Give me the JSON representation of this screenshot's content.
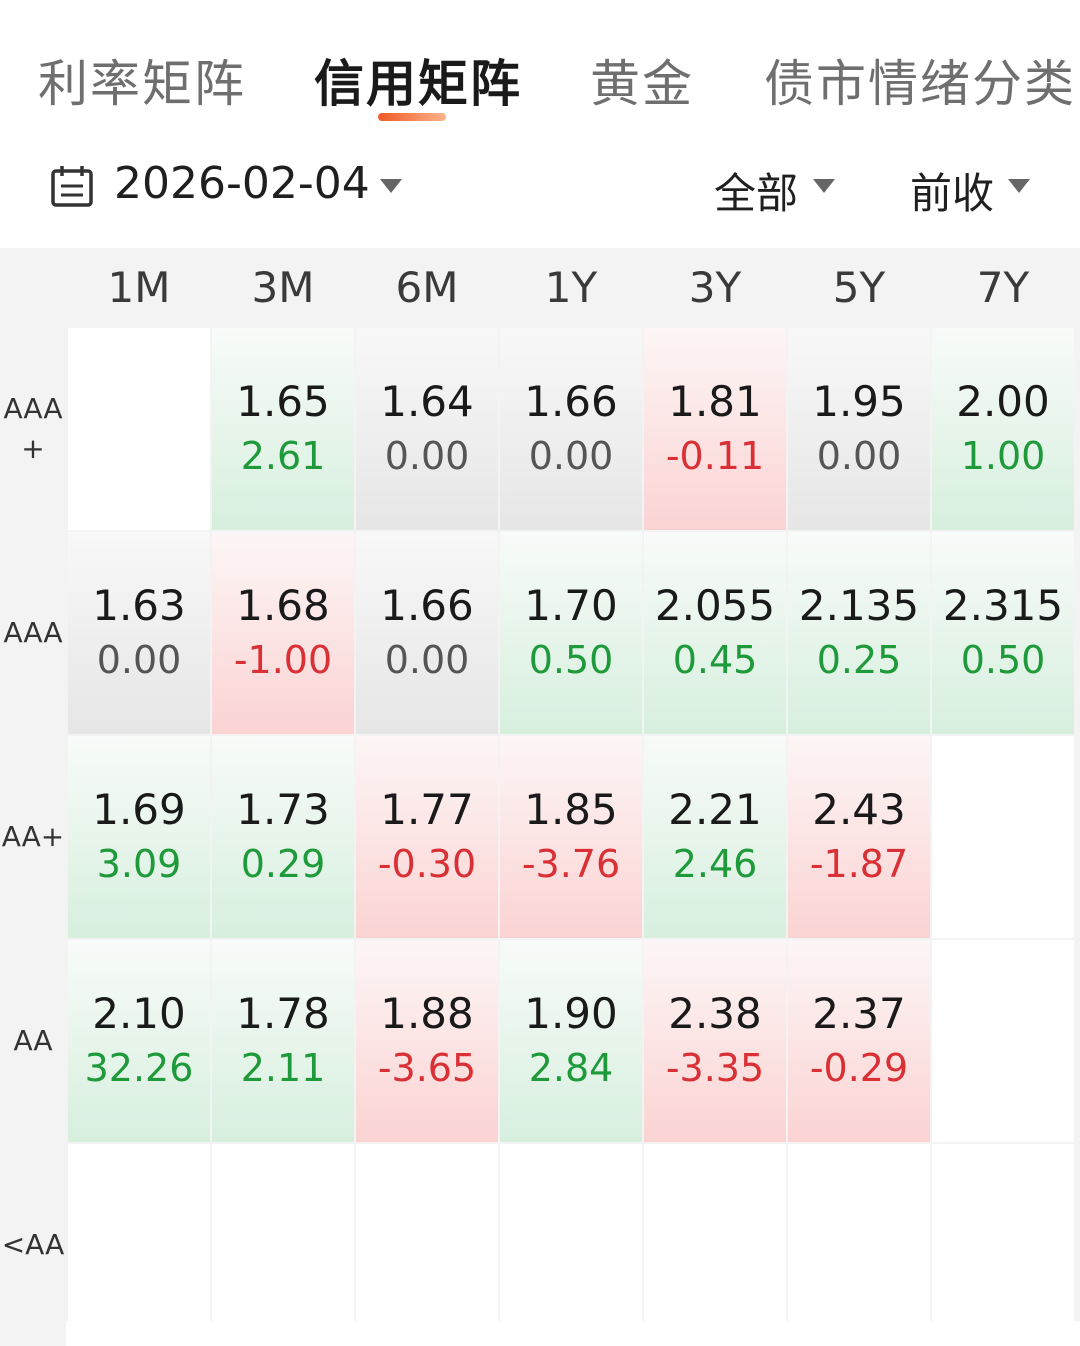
{
  "tabs": [
    {
      "label": "利率矩阵",
      "active": false
    },
    {
      "label": "信用矩阵",
      "active": true
    },
    {
      "label": "黄金",
      "active": false
    },
    {
      "label": "债市情绪分类",
      "active": false
    }
  ],
  "filters": {
    "date": "2026-02-04",
    "scope": "全部",
    "basis": "前收"
  },
  "colors": {
    "up": "#1f9a3a",
    "down": "#d93035",
    "flat": "#555555",
    "accent": "#f05a28"
  },
  "matrix": {
    "columns": [
      "1M",
      "3M",
      "6M",
      "1Y",
      "3Y",
      "5Y",
      "7Y"
    ],
    "rows": [
      {
        "rating": "AAA\n+",
        "cells": [
          null,
          {
            "value": "1.65",
            "change": "2.61",
            "trend": "up"
          },
          {
            "value": "1.64",
            "change": "0.00",
            "trend": "flat"
          },
          {
            "value": "1.66",
            "change": "0.00",
            "trend": "flat"
          },
          {
            "value": "1.81",
            "change": "-0.11",
            "trend": "down"
          },
          {
            "value": "1.95",
            "change": "0.00",
            "trend": "flat"
          },
          {
            "value": "2.00",
            "change": "1.00",
            "trend": "up"
          }
        ]
      },
      {
        "rating": "AAA",
        "cells": [
          {
            "value": "1.63",
            "change": "0.00",
            "trend": "flat"
          },
          {
            "value": "1.68",
            "change": "-1.00",
            "trend": "down"
          },
          {
            "value": "1.66",
            "change": "0.00",
            "trend": "flat"
          },
          {
            "value": "1.70",
            "change": "0.50",
            "trend": "up"
          },
          {
            "value": "2.055",
            "change": "0.45",
            "trend": "up"
          },
          {
            "value": "2.135",
            "change": "0.25",
            "trend": "up"
          },
          {
            "value": "2.315",
            "change": "0.50",
            "trend": "up"
          }
        ]
      },
      {
        "rating": "AA+",
        "cells": [
          {
            "value": "1.69",
            "change": "3.09",
            "trend": "up"
          },
          {
            "value": "1.73",
            "change": "0.29",
            "trend": "up"
          },
          {
            "value": "1.77",
            "change": "-0.30",
            "trend": "down"
          },
          {
            "value": "1.85",
            "change": "-3.76",
            "trend": "down"
          },
          {
            "value": "2.21",
            "change": "2.46",
            "trend": "up"
          },
          {
            "value": "2.43",
            "change": "-1.87",
            "trend": "down"
          },
          null
        ]
      },
      {
        "rating": "AA",
        "cells": [
          {
            "value": "2.10",
            "change": "32.26",
            "trend": "up"
          },
          {
            "value": "1.78",
            "change": "2.11",
            "trend": "up"
          },
          {
            "value": "1.88",
            "change": "-3.65",
            "trend": "down"
          },
          {
            "value": "1.90",
            "change": "2.84",
            "trend": "up"
          },
          {
            "value": "2.38",
            "change": "-3.35",
            "trend": "down"
          },
          {
            "value": "2.37",
            "change": "-0.29",
            "trend": "down"
          },
          null
        ]
      },
      {
        "rating": "<AA",
        "cells": [
          null,
          null,
          null,
          null,
          null,
          null,
          null
        ]
      }
    ]
  }
}
